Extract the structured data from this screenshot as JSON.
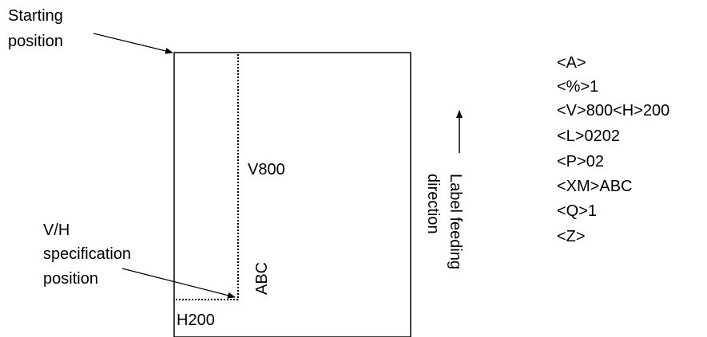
{
  "callouts": {
    "starting_line1": "Starting",
    "starting_line2": "position",
    "vh_line1": "V/H",
    "vh_line2": "specification",
    "vh_line3": "position"
  },
  "label": {
    "v_measure": "V800",
    "h_measure": "H200",
    "printed_text": "ABC"
  },
  "feed": {
    "line1": "Label feeding",
    "line2": "direction"
  },
  "commands": [
    "<A>",
    "<%>1",
    "<V>800<H>200",
    "<L>0202",
    "<P>02",
    "<XM>ABC",
    "<Q>1",
    "<Z>"
  ]
}
